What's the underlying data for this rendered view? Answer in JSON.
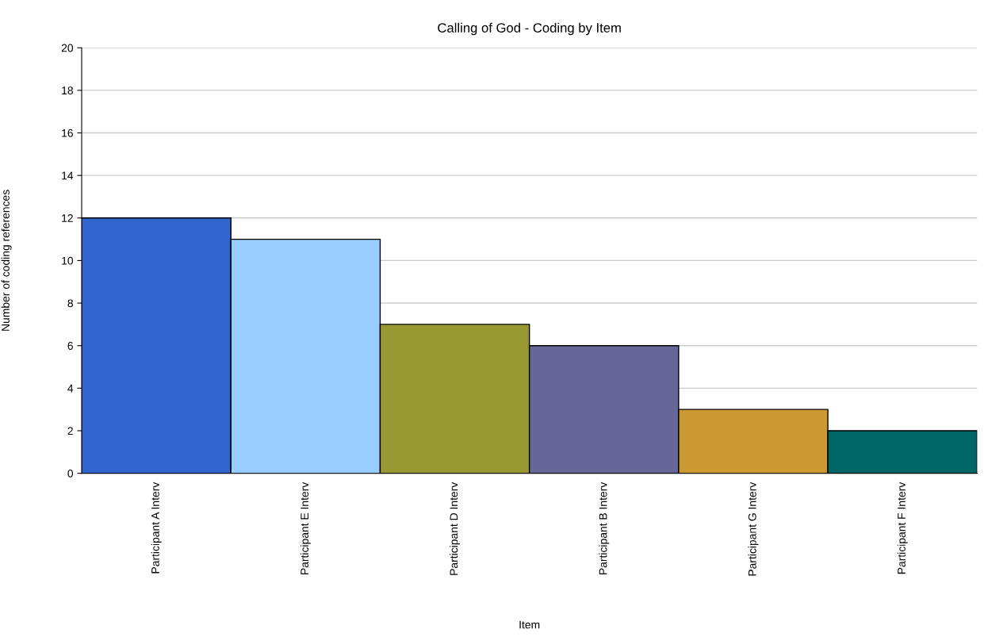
{
  "chart_data": {
    "type": "bar",
    "title": "Calling of God - Coding by Item",
    "xlabel": "Item",
    "ylabel": "Number of coding references",
    "categories": [
      "Participant A Interv",
      "Participant E Interv",
      "Participant D Interv",
      "Participant B Interv",
      "Participant G Interv",
      "Participant F Interv"
    ],
    "values": [
      12,
      11,
      7,
      6,
      3,
      2
    ],
    "colors": [
      "#3366cc",
      "#99ccff",
      "#999933",
      "#666699",
      "#cc9933",
      "#006666"
    ],
    "ylim": [
      0,
      20
    ],
    "yticks": [
      0,
      2,
      4,
      6,
      8,
      10,
      12,
      14,
      16,
      18,
      20
    ],
    "grid": "y",
    "legend": false
  }
}
